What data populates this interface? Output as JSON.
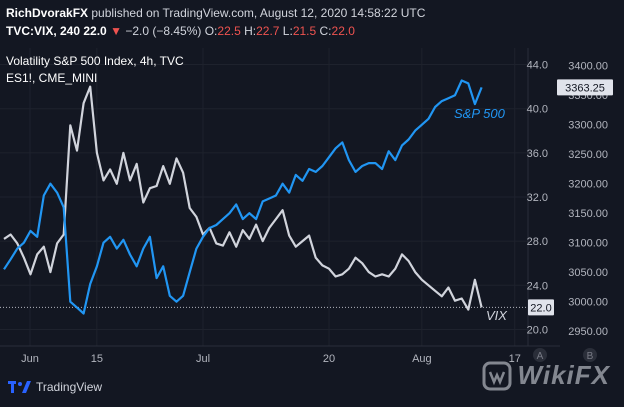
{
  "header": {
    "author": "RichDvorakFX",
    "published_text": "published on TradingView.com, August 12, 2020 14:58:22 UTC",
    "symbol": "TVC:VIX, 240",
    "last": "22.0",
    "arrow": "▼",
    "change": "−2.0 (−8.45%)",
    "o_label": "O:",
    "o_value": "22.5",
    "h_label": "H:",
    "h_value": "22.7",
    "l_label": "L:",
    "l_value": "21.5",
    "c_label": "C:",
    "c_value": "22.0"
  },
  "legend": {
    "study1": "Volatility S&P 500 Index, 4h, TVC",
    "study2": "ES1!, CME_MINI"
  },
  "footer": {
    "brand": "TradingView",
    "watermark": "WikiFX"
  },
  "colors": {
    "background": "#131722",
    "vix": "#d1d4dc",
    "spx": "#2196f3",
    "spx_badge": "#e0e3eb",
    "vix_badge": "#e0e3eb",
    "grid": "#1e222d",
    "text": "#b2b5be"
  },
  "chart_data": {
    "type": "line",
    "title": "Volatility S&P 500 Index, 4h, TVC",
    "x_labels": [
      "Jun",
      "15",
      "Jul",
      "20",
      "Aug",
      "17"
    ],
    "x_range": [
      "2020-06-01",
      "2020-08-19"
    ],
    "axis_scale_buttons": [
      "A",
      "B"
    ],
    "y_left": {
      "ticks": [
        "20.0",
        "24.0",
        "28.0",
        "32.0",
        "36.0",
        "40.0",
        "44.0"
      ],
      "range": [
        18.5,
        45.5
      ]
    },
    "y_right": {
      "ticks": [
        "2950.00",
        "3000.00",
        "3050.00",
        "3100.00",
        "3150.00",
        "3200.00",
        "3250.00",
        "3300.00",
        "3350.00",
        "3400.00"
      ],
      "range": [
        2925,
        3430
      ]
    },
    "series": [
      {
        "name": "VIX",
        "axis": "left",
        "last_label": "22.0",
        "values": [
          [
            "2020-06-01",
            28.2
          ],
          [
            "2020-06-02",
            28.6
          ],
          [
            "2020-06-03",
            27.8
          ],
          [
            "2020-06-04",
            26.5
          ],
          [
            "2020-06-05",
            25.0
          ],
          [
            "2020-06-06",
            26.8
          ],
          [
            "2020-06-07",
            27.5
          ],
          [
            "2020-06-08",
            25.2
          ],
          [
            "2020-06-09",
            27.8
          ],
          [
            "2020-06-10",
            28.6
          ],
          [
            "2020-06-11",
            38.5
          ],
          [
            "2020-06-12",
            36.2
          ],
          [
            "2020-06-13",
            40.5
          ],
          [
            "2020-06-14",
            42.0
          ],
          [
            "2020-06-15",
            36.0
          ],
          [
            "2020-06-16",
            33.5
          ],
          [
            "2020-06-17",
            34.5
          ],
          [
            "2020-06-18",
            33.2
          ],
          [
            "2020-06-19",
            36.0
          ],
          [
            "2020-06-20",
            33.5
          ],
          [
            "2020-06-21",
            35.0
          ],
          [
            "2020-06-22",
            31.5
          ],
          [
            "2020-06-23",
            32.8
          ],
          [
            "2020-06-24",
            33.0
          ],
          [
            "2020-06-25",
            34.8
          ],
          [
            "2020-06-26",
            33.2
          ],
          [
            "2020-06-27",
            35.5
          ],
          [
            "2020-06-28",
            34.2
          ],
          [
            "2020-06-29",
            31.0
          ],
          [
            "2020-06-30",
            30.2
          ],
          [
            "2020-07-01",
            28.6
          ],
          [
            "2020-07-02",
            29.2
          ],
          [
            "2020-07-03",
            27.8
          ],
          [
            "2020-07-04",
            27.6
          ],
          [
            "2020-07-05",
            28.8
          ],
          [
            "2020-07-06",
            27.5
          ],
          [
            "2020-07-07",
            29.0
          ],
          [
            "2020-07-08",
            28.2
          ],
          [
            "2020-07-09",
            29.5
          ],
          [
            "2020-07-10",
            28.0
          ],
          [
            "2020-07-11",
            29.2
          ],
          [
            "2020-07-12",
            30.0
          ],
          [
            "2020-07-13",
            30.8
          ],
          [
            "2020-07-14",
            28.5
          ],
          [
            "2020-07-15",
            27.5
          ],
          [
            "2020-07-16",
            28.0
          ],
          [
            "2020-07-17",
            28.5
          ],
          [
            "2020-07-18",
            26.5
          ],
          [
            "2020-07-19",
            25.8
          ],
          [
            "2020-07-20",
            25.5
          ],
          [
            "2020-07-21",
            24.8
          ],
          [
            "2020-07-22",
            25.0
          ],
          [
            "2020-07-23",
            25.5
          ],
          [
            "2020-07-24",
            26.5
          ],
          [
            "2020-07-25",
            26.0
          ],
          [
            "2020-07-26",
            25.2
          ],
          [
            "2020-07-27",
            24.8
          ],
          [
            "2020-07-28",
            25.0
          ],
          [
            "2020-07-29",
            24.8
          ],
          [
            "2020-07-30",
            25.5
          ],
          [
            "2020-07-31",
            26.8
          ],
          [
            "2020-08-01",
            26.2
          ],
          [
            "2020-08-02",
            25.2
          ],
          [
            "2020-08-03",
            24.5
          ],
          [
            "2020-08-04",
            24.0
          ],
          [
            "2020-08-05",
            23.5
          ],
          [
            "2020-08-06",
            23.0
          ],
          [
            "2020-08-07",
            23.8
          ],
          [
            "2020-08-08",
            22.6
          ],
          [
            "2020-08-09",
            22.8
          ],
          [
            "2020-08-10",
            21.8
          ],
          [
            "2020-08-11",
            24.5
          ],
          [
            "2020-08-12",
            22.0
          ]
        ]
      },
      {
        "name": "S&P 500",
        "axis": "right",
        "last_label": "3363.25",
        "values": [
          [
            "2020-06-01",
            3055
          ],
          [
            "2020-06-02",
            3072
          ],
          [
            "2020-06-03",
            3090
          ],
          [
            "2020-06-04",
            3100
          ],
          [
            "2020-06-05",
            3120
          ],
          [
            "2020-06-06",
            3110
          ],
          [
            "2020-06-07",
            3180
          ],
          [
            "2020-06-08",
            3200
          ],
          [
            "2020-06-09",
            3185
          ],
          [
            "2020-06-10",
            3160
          ],
          [
            "2020-06-11",
            3000
          ],
          [
            "2020-06-12",
            2990
          ],
          [
            "2020-06-13",
            2980
          ],
          [
            "2020-06-14",
            3030
          ],
          [
            "2020-06-15",
            3060
          ],
          [
            "2020-06-16",
            3100
          ],
          [
            "2020-06-17",
            3110
          ],
          [
            "2020-06-18",
            3090
          ],
          [
            "2020-06-19",
            3105
          ],
          [
            "2020-06-20",
            3080
          ],
          [
            "2020-06-21",
            3060
          ],
          [
            "2020-06-22",
            3090
          ],
          [
            "2020-06-23",
            3110
          ],
          [
            "2020-06-24",
            3040
          ],
          [
            "2020-06-25",
            3060
          ],
          [
            "2020-06-26",
            3010
          ],
          [
            "2020-06-27",
            3000
          ],
          [
            "2020-06-28",
            3010
          ],
          [
            "2020-06-29",
            3050
          ],
          [
            "2020-06-30",
            3090
          ],
          [
            "2020-07-01",
            3110
          ],
          [
            "2020-07-02",
            3125
          ],
          [
            "2020-07-03",
            3130
          ],
          [
            "2020-07-04",
            3140
          ],
          [
            "2020-07-05",
            3150
          ],
          [
            "2020-07-06",
            3165
          ],
          [
            "2020-07-07",
            3140
          ],
          [
            "2020-07-08",
            3150
          ],
          [
            "2020-07-09",
            3140
          ],
          [
            "2020-07-10",
            3170
          ],
          [
            "2020-07-11",
            3175
          ],
          [
            "2020-07-12",
            3180
          ],
          [
            "2020-07-13",
            3200
          ],
          [
            "2020-07-14",
            3185
          ],
          [
            "2020-07-15",
            3215
          ],
          [
            "2020-07-16",
            3205
          ],
          [
            "2020-07-17",
            3225
          ],
          [
            "2020-07-18",
            3220
          ],
          [
            "2020-07-19",
            3230
          ],
          [
            "2020-07-20",
            3245
          ],
          [
            "2020-07-21",
            3260
          ],
          [
            "2020-07-22",
            3270
          ],
          [
            "2020-07-23",
            3240
          ],
          [
            "2020-07-24",
            3220
          ],
          [
            "2020-07-25",
            3230
          ],
          [
            "2020-07-26",
            3235
          ],
          [
            "2020-07-27",
            3235
          ],
          [
            "2020-07-28",
            3225
          ],
          [
            "2020-07-29",
            3255
          ],
          [
            "2020-07-30",
            3240
          ],
          [
            "2020-07-31",
            3265
          ],
          [
            "2020-08-01",
            3275
          ],
          [
            "2020-08-02",
            3290
          ],
          [
            "2020-08-03",
            3300
          ],
          [
            "2020-08-04",
            3310
          ],
          [
            "2020-08-05",
            3330
          ],
          [
            "2020-08-06",
            3340
          ],
          [
            "2020-08-07",
            3345
          ],
          [
            "2020-08-08",
            3350
          ],
          [
            "2020-08-09",
            3375
          ],
          [
            "2020-08-10",
            3370
          ],
          [
            "2020-08-11",
            3335
          ],
          [
            "2020-08-12",
            3363.25
          ]
        ]
      }
    ]
  }
}
